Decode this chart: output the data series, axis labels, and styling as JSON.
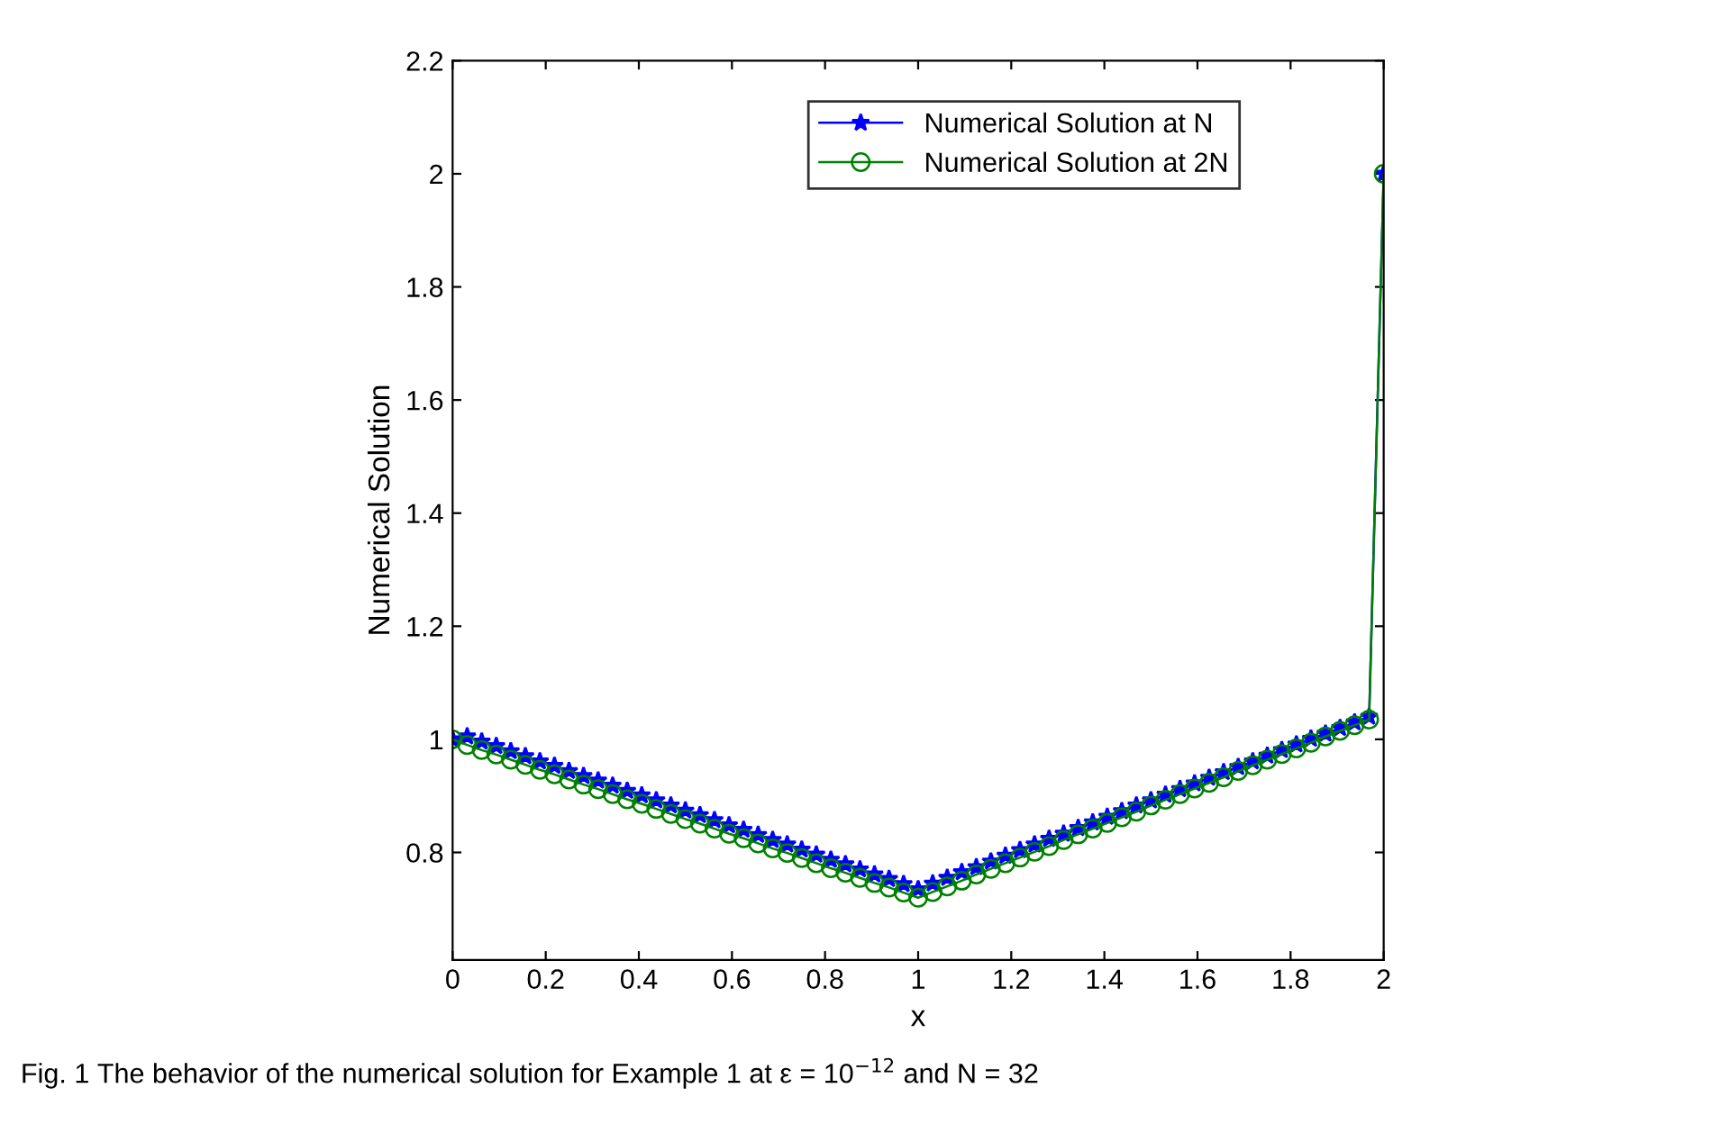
{
  "chart_data": {
    "type": "line",
    "xlabel": "x",
    "ylabel": "Numerical Solution",
    "annotations": [
      "Fig. 1 The behavior of the numerical solution for Example 1 at ε = 10$^{−12}$ and N = 32"
    ],
    "x": [
      0,
      0.03125,
      0.0625,
      0.09375,
      0.125,
      0.15625,
      0.1875,
      0.21875,
      0.25,
      0.28125,
      0.3125,
      0.34375,
      0.375,
      0.40625,
      0.4375,
      0.46875,
      0.5,
      0.53125,
      0.5625,
      0.59375,
      0.625,
      0.65625,
      0.6875,
      0.71875,
      0.75,
      0.78125,
      0.8125,
      0.84375,
      0.875,
      0.90625,
      0.9375,
      0.96875,
      1,
      1.03125,
      1.0625,
      1.09375,
      1.125,
      1.15625,
      1.1875,
      1.21875,
      1.25,
      1.28125,
      1.3125,
      1.34375,
      1.375,
      1.40625,
      1.4375,
      1.46875,
      1.5,
      1.53125,
      1.5625,
      1.59375,
      1.625,
      1.65625,
      1.6875,
      1.71875,
      1.75,
      1.78125,
      1.8125,
      1.84375,
      1.875,
      1.90625,
      1.9375,
      1.96875,
      2
    ],
    "series": [
      {
        "name": "Numerical Solution at N",
        "color": "#0000ff",
        "marker": "star",
        "values": [
          1.0,
          1.005,
          0.996,
          0.988,
          0.979,
          0.97,
          0.961,
          0.953,
          0.944,
          0.935,
          0.927,
          0.918,
          0.909,
          0.901,
          0.892,
          0.883,
          0.874,
          0.866,
          0.857,
          0.848,
          0.84,
          0.831,
          0.822,
          0.814,
          0.805,
          0.796,
          0.787,
          0.779,
          0.77,
          0.761,
          0.753,
          0.744,
          0.735,
          0.745,
          0.755,
          0.765,
          0.774,
          0.784,
          0.794,
          0.804,
          0.814,
          0.824,
          0.833,
          0.843,
          0.853,
          0.863,
          0.873,
          0.883,
          0.892,
          0.902,
          0.912,
          0.922,
          0.932,
          0.942,
          0.951,
          0.961,
          0.971,
          0.981,
          0.991,
          1.001,
          1.01,
          1.02,
          1.03,
          1.04,
          2.0
        ]
      },
      {
        "name": "Numerical Solution at 2N",
        "color": "#008000",
        "marker": "circle",
        "values": [
          1.0,
          0.99,
          0.981,
          0.973,
          0.964,
          0.955,
          0.946,
          0.938,
          0.929,
          0.92,
          0.912,
          0.903,
          0.894,
          0.886,
          0.877,
          0.868,
          0.859,
          0.851,
          0.842,
          0.833,
          0.825,
          0.816,
          0.807,
          0.799,
          0.79,
          0.781,
          0.772,
          0.764,
          0.755,
          0.746,
          0.738,
          0.729,
          0.72,
          0.73,
          0.74,
          0.75,
          0.761,
          0.771,
          0.781,
          0.791,
          0.801,
          0.811,
          0.822,
          0.832,
          0.842,
          0.852,
          0.862,
          0.872,
          0.883,
          0.893,
          0.903,
          0.913,
          0.923,
          0.933,
          0.944,
          0.954,
          0.964,
          0.974,
          0.984,
          0.994,
          1.005,
          1.015,
          1.025,
          1.035,
          2.0
        ]
      }
    ],
    "xlim": [
      0,
      2
    ],
    "xticks": [
      0,
      0.2,
      0.4,
      0.6,
      0.8,
      1,
      1.2,
      1.4,
      1.6,
      1.8,
      2
    ],
    "ylim": [
      0.61,
      2.2
    ],
    "yticks": [
      0.8,
      1,
      1.2,
      1.4,
      1.6,
      1.8,
      2,
      2.2
    ],
    "grid": false,
    "legend": "top right",
    "line_style": "solid"
  }
}
